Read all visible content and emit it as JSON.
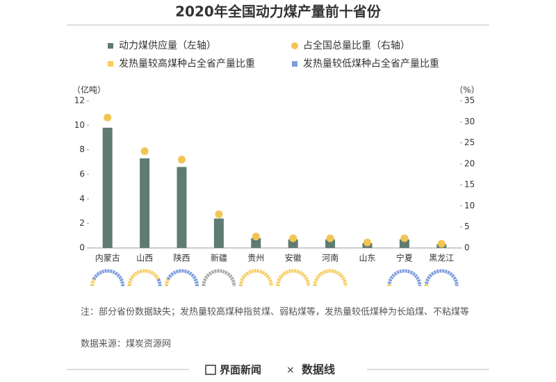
{
  "chart_data": {
    "type": "bar",
    "title": "2020年全国动力煤产量前十省份",
    "categories": [
      "内蒙古",
      "山西",
      "陕西",
      "新疆",
      "贵州",
      "安徽",
      "河南",
      "山东",
      "宁夏",
      "黑龙江"
    ],
    "series": [
      {
        "name": "动力煤供应量（左轴）",
        "color": "#5f7b72",
        "type": "bar",
        "values": [
          9.8,
          7.3,
          6.6,
          2.4,
          0.8,
          0.7,
          0.7,
          0.4,
          0.7,
          0.3
        ]
      },
      {
        "name": "占全国总量比重（右轴）",
        "color": "#f2c452",
        "type": "scatter",
        "axis": "y2",
        "values": [
          31,
          23,
          21,
          8,
          2.7,
          2.3,
          2.3,
          1.3,
          2.3,
          1.0
        ]
      },
      {
        "name": "发热量较高煤种占全省产量比重",
        "color": "#f5cd60",
        "type": "gauge",
        "values": [
          15,
          85,
          15,
          null,
          100,
          100,
          100,
          null,
          5,
          5
        ]
      },
      {
        "name": "发热量较低煤种占全省产量比重",
        "color": "#7d9de0",
        "type": "gauge",
        "values": [
          85,
          15,
          85,
          null,
          0,
          0,
          0,
          null,
          95,
          95
        ]
      }
    ],
    "ylabel": "（亿吨）",
    "y2label": "（%）",
    "ylim": [
      0,
      12
    ],
    "yticks": [
      0,
      2,
      4,
      6,
      8,
      10,
      12
    ],
    "y2lim": [
      0,
      35
    ],
    "y2ticks": [
      0,
      5,
      10,
      15,
      20,
      25,
      30,
      35
    ],
    "note": "注：部分省份数据缺失；发热量较高煤种指贫煤、弱粘煤等，发热量较低煤种为长焰煤、不粘煤等",
    "source": "数据来源：煤炭资源网",
    "footer": {
      "brand": "界面新闻",
      "cross": "×",
      "partner": "数据线"
    }
  }
}
